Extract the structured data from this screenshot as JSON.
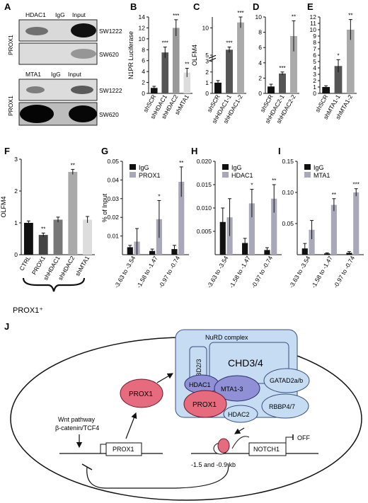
{
  "panel_labels": {
    "A": "A",
    "B": "B",
    "C": "C",
    "D": "D",
    "E": "E",
    "F": "F",
    "G": "G",
    "H": "H",
    "I": "I",
    "J": "J"
  },
  "blots": {
    "axis_label": "PROX1",
    "top": {
      "headers": [
        "HDAC1",
        "IgG",
        "Input"
      ],
      "rows": [
        "SW1222",
        "SW620"
      ]
    },
    "bottom": {
      "headers": [
        "MTA1",
        "IgG",
        "Input"
      ],
      "rows": [
        "SW1222",
        "SW620"
      ]
    }
  },
  "chart_data": [
    {
      "id": "B",
      "type": "bar",
      "ylabel": "N1PR Luciferase",
      "ylim": [
        0,
        14
      ],
      "yticks": [
        "0",
        "2",
        "4",
        "6",
        "8",
        "10",
        "12",
        "14"
      ],
      "categories": [
        "shSCR",
        "shHDAC1",
        "shHDAC2",
        "shMTA1"
      ],
      "values": [
        1.0,
        7.5,
        12.0,
        3.8
      ],
      "errors": [
        0.3,
        1.0,
        1.5,
        0.8
      ],
      "significance": [
        "",
        "***",
        "***",
        "**"
      ],
      "colors": [
        "#111111",
        "#555555",
        "#999999",
        "#dcdcdc"
      ]
    },
    {
      "id": "C",
      "type": "bar",
      "ylabel": "OLFM4",
      "ylim": [
        0,
        12
      ],
      "yticks": [
        "0",
        "1",
        "2",
        "3",
        "5",
        "10"
      ],
      "axis_break": true,
      "categories": [
        "shSCR",
        "shHDAC1-1",
        "shHDAC1-2"
      ],
      "values": [
        1.0,
        6.0,
        11.0
      ],
      "errors": [
        0.2,
        0.5,
        1.0
      ],
      "significance": [
        "",
        "***",
        "***"
      ],
      "colors": [
        "#111111",
        "#555555",
        "#aaaaaa"
      ]
    },
    {
      "id": "D",
      "type": "bar",
      "ylabel": "",
      "ylim": [
        0,
        10
      ],
      "yticks": [
        "0",
        "2",
        "4",
        "6",
        "8",
        "10"
      ],
      "categories": [
        "shSCR",
        "shHDAC2-1",
        "shHDAC2-2"
      ],
      "values": [
        0.9,
        2.6,
        7.5
      ],
      "errors": [
        0.3,
        0.2,
        2.0
      ],
      "significance": [
        "",
        "***",
        "**"
      ],
      "colors": [
        "#111111",
        "#555555",
        "#aaaaaa"
      ]
    },
    {
      "id": "E",
      "type": "bar",
      "ylabel": "",
      "ylim": [
        0,
        12
      ],
      "yticks": [
        "0",
        "1",
        "2",
        "3",
        "4",
        "5",
        "6",
        "7",
        "8",
        "9",
        "10",
        "11",
        "12"
      ],
      "categories": [
        "shSCR",
        "shMTA1-1",
        "shMTA1-2"
      ],
      "values": [
        1.0,
        4.3,
        10.0
      ],
      "errors": [
        0.2,
        1.0,
        1.6
      ],
      "significance": [
        "",
        "*",
        "**"
      ],
      "colors": [
        "#111111",
        "#555555",
        "#aaaaaa"
      ]
    },
    {
      "id": "F",
      "type": "bar",
      "ylabel": "OLFM4",
      "ylim": [
        0,
        3
      ],
      "yticks": [
        "0",
        "1",
        "2",
        "3"
      ],
      "categories": [
        "CTRL",
        "PROX1",
        "shHDAC1",
        "shHDAC2",
        "shMTA1"
      ],
      "values": [
        1.0,
        0.62,
        1.1,
        2.6,
        1.1
      ],
      "errors": [
        0.06,
        0.06,
        0.08,
        0.08,
        0.1
      ],
      "significance": [
        "",
        "**",
        "",
        "**",
        ""
      ],
      "colors": [
        "#111111",
        "#444444",
        "#777777",
        "#aaaaaa",
        "#dddddd"
      ],
      "group_label": "PROX1⁺"
    },
    {
      "id": "G",
      "type": "bar",
      "ylabel": "% of Input",
      "ylim": [
        0,
        0.05
      ],
      "yticks": [
        "0.01",
        "0.02",
        "0.03",
        "0.04",
        "0.05"
      ],
      "categories": [
        "-3.63 to -3.54",
        "-1.58 to -1.47",
        "-0.97 to -0.74"
      ],
      "series": [
        {
          "name": "IgG",
          "color": "#111111",
          "values": [
            0.004,
            0.002,
            0.003
          ],
          "errors": [
            0.001,
            0.001,
            0.002
          ]
        },
        {
          "name": "PROX1",
          "color": "#a8a8b8",
          "values": [
            0.007,
            0.019,
            0.039
          ],
          "errors": [
            0.007,
            0.01,
            0.008
          ]
        }
      ],
      "significance": [
        "",
        "*",
        "**"
      ]
    },
    {
      "id": "H",
      "type": "bar",
      "ylabel": "",
      "ylim": [
        0,
        0.02
      ],
      "yticks": [
        "0.005",
        "0.010",
        "0.015",
        "0.020"
      ],
      "categories": [
        "-3.63 to -3.54",
        "-1.58 to -1.47",
        "-0.97 to -0.74"
      ],
      "series": [
        {
          "name": "IgG",
          "color": "#111111",
          "values": [
            0.007,
            0.0025,
            0.001
          ],
          "errors": [
            0.003,
            0.001,
            0.0005
          ]
        },
        {
          "name": "HDAC1",
          "color": "#a8a8b8",
          "values": [
            0.008,
            0.011,
            0.012
          ],
          "errors": [
            0.004,
            0.003,
            0.003
          ]
        }
      ],
      "significance": [
        "",
        "*",
        "**"
      ]
    },
    {
      "id": "I",
      "type": "bar",
      "ylabel": "",
      "ylim": [
        0,
        0.15
      ],
      "yticks": [
        "0.05",
        "0.10",
        "0.15"
      ],
      "categories": [
        "-3.63 to -3.54",
        "-1.58 to -1.47",
        "-0.97 to -0.74"
      ],
      "series": [
        {
          "name": "IgG",
          "color": "#111111",
          "values": [
            0.01,
            0.002,
            0.003
          ],
          "errors": [
            0.008,
            0.001,
            0.002
          ]
        },
        {
          "name": "MTA1",
          "color": "#a8a8b8",
          "values": [
            0.04,
            0.08,
            0.1
          ],
          "errors": [
            0.015,
            0.01,
            0.006
          ]
        }
      ],
      "significance": [
        "",
        "**",
        "***"
      ]
    }
  ],
  "diagram": {
    "complex_title": "NuRD complex",
    "chd": "CHD3/4",
    "mbd": "MBD2/3",
    "hdac1": "HDAC1",
    "mta": "MTA1-3",
    "gatad": "GATAD2a/b",
    "rbbp": "RBBP4/7",
    "hdac2": "HDAC2",
    "prox1_complex": "PROX1",
    "prox1_free": "PROX1",
    "wnt_line1": "Wnt pathway",
    "wnt_line2": "β-catenin/TCF4",
    "prox1_gene": "PROX1",
    "notch_gene": "NOTCH1",
    "off": "OFF",
    "kb": "-1.5 and -0.9 kb"
  }
}
